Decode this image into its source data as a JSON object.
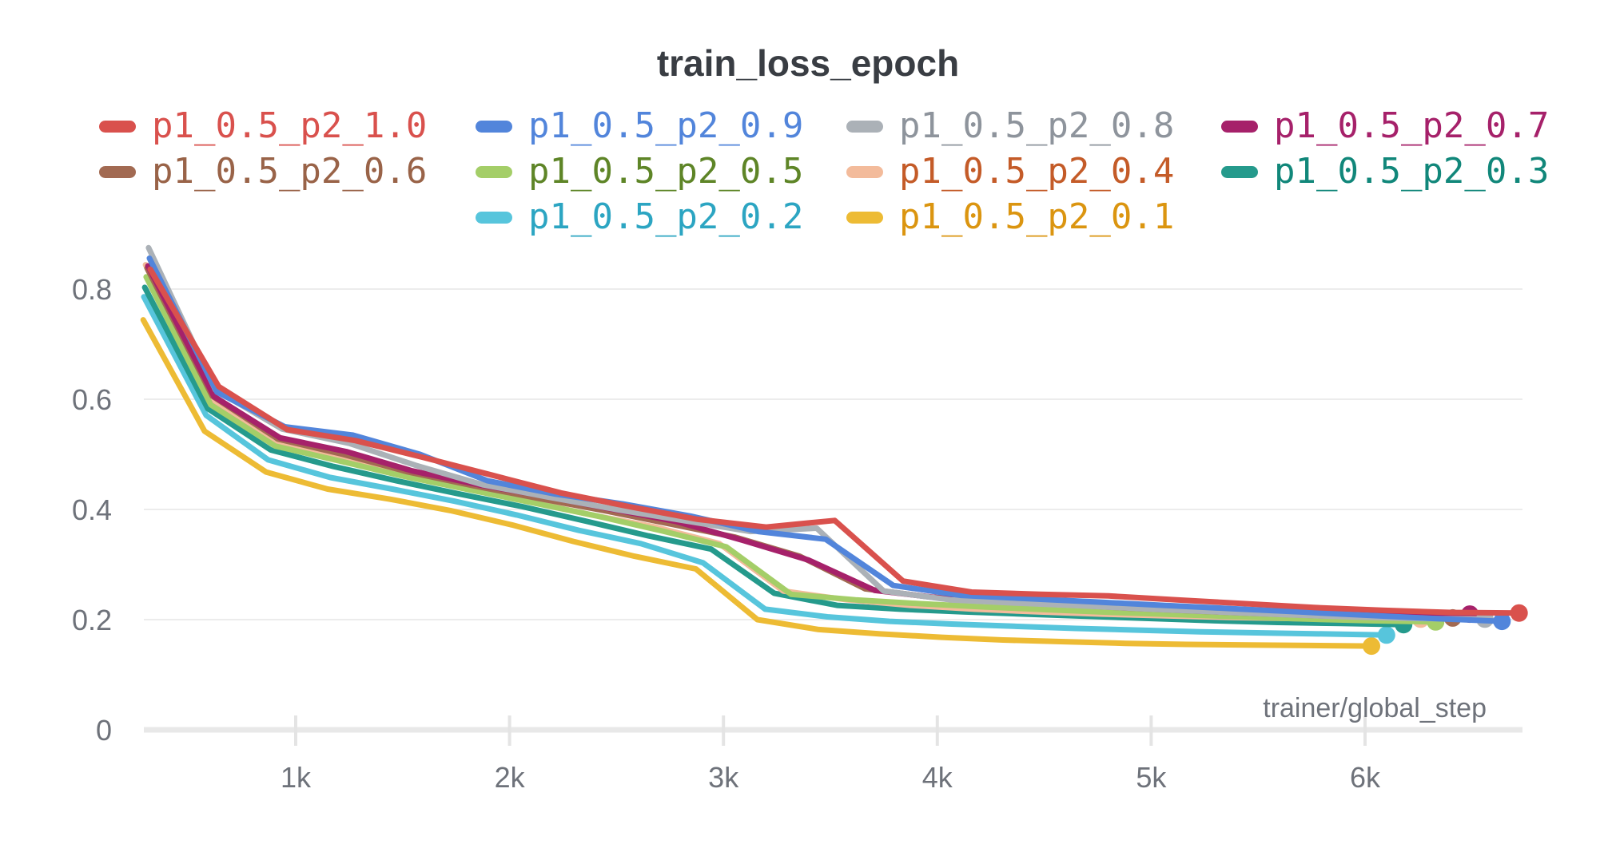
{
  "title": "train_loss_epoch",
  "chart_data": {
    "type": "line",
    "title": "train_loss_epoch",
    "xlabel": "trainer/global_step",
    "ylabel": "",
    "xlim": [
      280,
      6900
    ],
    "ylim": [
      0,
      0.9
    ],
    "grid": "horizontal",
    "legend_position": "top",
    "x_ticks": [
      {
        "label": "1k",
        "value": 1000
      },
      {
        "label": "2k",
        "value": 2000
      },
      {
        "label": "3k",
        "value": 3000
      },
      {
        "label": "4k",
        "value": 4000
      },
      {
        "label": "5k",
        "value": 5000
      },
      {
        "label": "6k",
        "value": 6000
      }
    ],
    "y_ticks": [
      {
        "label": "0",
        "value": 0
      },
      {
        "label": "0.2",
        "value": 0.2
      },
      {
        "label": "0.4",
        "value": 0.4
      },
      {
        "label": "0.6",
        "value": 0.6
      },
      {
        "label": "0.8",
        "value": 0.8
      }
    ],
    "colors": {
      "gridline": "#ececec",
      "axis_line": "#e8e8e8",
      "tick_mark": "#e4e4e4",
      "tick_label": "#6e727a",
      "title_text": "#393d43"
    },
    "series": [
      {
        "name": "p1_0.5_p2_1.0",
        "color": "#d9514d",
        "text_color": "#d9514d",
        "steps": [
          320,
          640,
          960,
          1280,
          1600,
          1920,
          2240,
          2560,
          2880,
          3200,
          3520,
          3840,
          4160,
          4480,
          4800,
          5120,
          5440,
          5760,
          6080,
          6400,
          6720
        ],
        "values": [
          0.836,
          0.623,
          0.545,
          0.525,
          0.494,
          0.462,
          0.43,
          0.405,
          0.382,
          0.368,
          0.38,
          0.27,
          0.25,
          0.246,
          0.243,
          0.236,
          0.229,
          0.222,
          0.217,
          0.213,
          0.212
        ]
      },
      {
        "name": "p1_0.5_p2_0.9",
        "color": "#5285db",
        "text_color": "#5285db",
        "steps": [
          316,
          632,
          949,
          1265,
          1581,
          1897,
          2213,
          2530,
          2846,
          3162,
          3478,
          3794,
          4111,
          4427,
          4743,
          5059,
          5375,
          5692,
          6008,
          6324,
          6640
        ],
        "values": [
          0.856,
          0.613,
          0.55,
          0.535,
          0.5,
          0.452,
          0.428,
          0.41,
          0.388,
          0.36,
          0.346,
          0.262,
          0.244,
          0.238,
          0.232,
          0.226,
          0.22,
          0.214,
          0.208,
          0.202,
          0.197
        ]
      },
      {
        "name": "p1_0.5_p2_0.8",
        "color": "#abb1b7",
        "text_color": "#8e949c",
        "steps": [
          312,
          625,
          937,
          1250,
          1562,
          1874,
          2187,
          2499,
          2811,
          3124,
          3436,
          3749,
          4061,
          4373,
          4686,
          4998,
          5310,
          5623,
          5935,
          6248,
          6560
        ],
        "values": [
          0.875,
          0.617,
          0.546,
          0.52,
          0.48,
          0.445,
          0.422,
          0.4,
          0.38,
          0.36,
          0.366,
          0.252,
          0.236,
          0.23,
          0.225,
          0.219,
          0.214,
          0.209,
          0.205,
          0.202,
          0.201
        ]
      },
      {
        "name": "p1_0.5_p2_0.7",
        "color": "#a6216a",
        "text_color": "#a6216a",
        "steps": [
          309,
          618,
          927,
          1236,
          1545,
          1854,
          2163,
          2472,
          2781,
          3090,
          3399,
          3708,
          4017,
          4326,
          4635,
          4944,
          5253,
          5562,
          5871,
          6180,
          6490
        ],
        "values": [
          0.842,
          0.605,
          0.53,
          0.505,
          0.47,
          0.445,
          0.424,
          0.401,
          0.378,
          0.344,
          0.308,
          0.253,
          0.239,
          0.233,
          0.227,
          0.222,
          0.217,
          0.214,
          0.212,
          0.211,
          0.21
        ]
      },
      {
        "name": "p1_0.5_p2_0.6",
        "color": "#a26a52",
        "text_color": "#996348",
        "steps": [
          305,
          610,
          916,
          1221,
          1526,
          1831,
          2136,
          2442,
          2747,
          3052,
          3357,
          3662,
          3968,
          4273,
          4578,
          4883,
          5188,
          5494,
          5799,
          6104,
          6410
        ],
        "values": [
          0.838,
          0.606,
          0.528,
          0.5,
          0.468,
          0.443,
          0.42,
          0.398,
          0.374,
          0.35,
          0.315,
          0.256,
          0.241,
          0.234,
          0.228,
          0.221,
          0.216,
          0.211,
          0.207,
          0.205,
          0.203
        ]
      },
      {
        "name": "p1_0.5_p2_0.5",
        "color": "#a4ce68",
        "text_color": "#5e8527",
        "steps": [
          301,
          603,
          904,
          1206,
          1507,
          1809,
          2110,
          2411,
          2713,
          3014,
          3316,
          3617,
          3919,
          4220,
          4521,
          4823,
          5124,
          5426,
          5727,
          6029,
          6330
        ],
        "values": [
          0.822,
          0.59,
          0.515,
          0.488,
          0.46,
          0.436,
          0.412,
          0.388,
          0.361,
          0.332,
          0.246,
          0.236,
          0.229,
          0.223,
          0.218,
          0.213,
          0.209,
          0.205,
          0.201,
          0.198,
          0.196
        ]
      },
      {
        "name": "p1_0.5_p2_0.4",
        "color": "#f3bb9b",
        "text_color": "#c45b28",
        "steps": [
          298,
          596,
          894,
          1192,
          1490,
          1789,
          2087,
          2385,
          2683,
          2981,
          3279,
          3577,
          3875,
          4173,
          4471,
          4770,
          5068,
          5366,
          5664,
          5962,
          6260
        ],
        "values": [
          0.844,
          0.603,
          0.521,
          0.493,
          0.463,
          0.438,
          0.415,
          0.39,
          0.368,
          0.338,
          0.252,
          0.236,
          0.226,
          0.219,
          0.214,
          0.21,
          0.207,
          0.204,
          0.202,
          0.201,
          0.201
        ]
      },
      {
        "name": "p1_0.5_p2_0.3",
        "color": "#259a8c",
        "text_color": "#11877a",
        "steps": [
          294,
          589,
          883,
          1177,
          1471,
          1766,
          2060,
          2354,
          2649,
          2943,
          3237,
          3531,
          3826,
          4120,
          4414,
          4709,
          5003,
          5297,
          5591,
          5886,
          6180
        ],
        "values": [
          0.803,
          0.583,
          0.508,
          0.478,
          0.452,
          0.428,
          0.405,
          0.379,
          0.352,
          0.328,
          0.248,
          0.226,
          0.219,
          0.214,
          0.21,
          0.206,
          0.202,
          0.198,
          0.195,
          0.193,
          0.191
        ]
      },
      {
        "name": "p1_0.5_p2_0.2",
        "color": "#57c5dc",
        "text_color": "#2ca5c2",
        "steps": [
          290,
          581,
          871,
          1162,
          1452,
          1743,
          2033,
          2324,
          2614,
          2905,
          3195,
          3486,
          3776,
          4067,
          4357,
          4648,
          4938,
          5229,
          5519,
          5810,
          6100
        ],
        "values": [
          0.786,
          0.571,
          0.49,
          0.458,
          0.437,
          0.415,
          0.39,
          0.362,
          0.338,
          0.303,
          0.219,
          0.205,
          0.197,
          0.192,
          0.188,
          0.184,
          0.181,
          0.178,
          0.176,
          0.174,
          0.172
        ]
      },
      {
        "name": "p1_0.5_p2_0.1",
        "color": "#edbb34",
        "text_color": "#db9510",
        "steps": [
          287,
          574,
          861,
          1149,
          1436,
          1723,
          2010,
          2297,
          2584,
          2871,
          3159,
          3446,
          3733,
          4020,
          4307,
          4594,
          4881,
          5169,
          5456,
          5743,
          6030
        ],
        "values": [
          0.744,
          0.542,
          0.468,
          0.437,
          0.419,
          0.398,
          0.372,
          0.342,
          0.315,
          0.292,
          0.2,
          0.182,
          0.174,
          0.168,
          0.163,
          0.16,
          0.157,
          0.155,
          0.154,
          0.153,
          0.152
        ]
      }
    ]
  }
}
